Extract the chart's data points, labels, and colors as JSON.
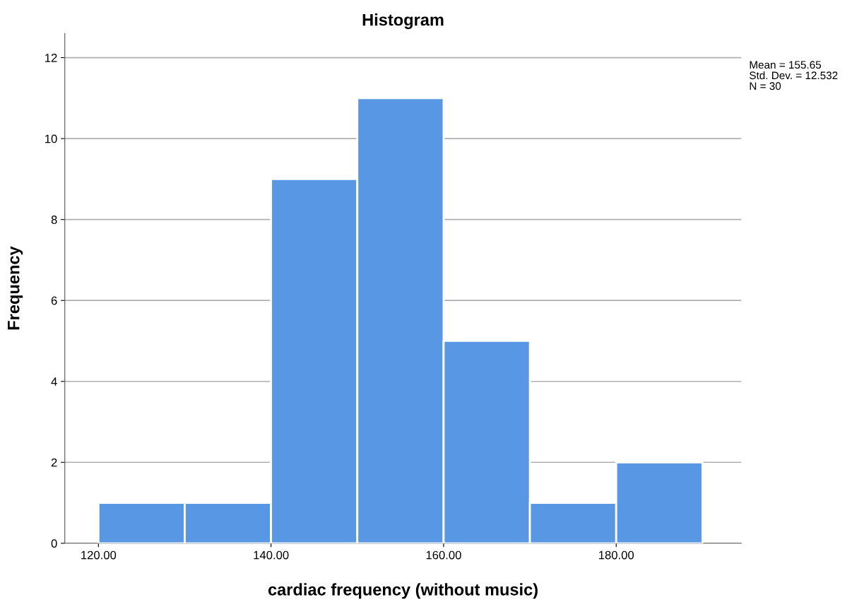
{
  "chart_data": {
    "type": "histogram",
    "title": "Histogram",
    "xlabel": "cardiac frequency (without music)",
    "ylabel": "Frequency",
    "bins": [
      120,
      130,
      140,
      150,
      160,
      170,
      180,
      190
    ],
    "values": [
      1,
      1,
      9,
      11,
      5,
      1,
      2
    ],
    "color": "#5797e3",
    "xlim": [
      116.1,
      194.5
    ],
    "xticks": [
      {
        "value": 120,
        "label": "120.00"
      },
      {
        "value": 140,
        "label": "140.00"
      },
      {
        "value": 160,
        "label": "160.00"
      },
      {
        "value": 180,
        "label": "180.00"
      }
    ],
    "ylim": [
      0,
      12.6
    ],
    "yticks": [
      0,
      2,
      4,
      6,
      8,
      10,
      12
    ],
    "grid": "y",
    "annotations": [
      "Mean = 155.65",
      "Std. Dev. = 12.532",
      "N = 30"
    ]
  }
}
